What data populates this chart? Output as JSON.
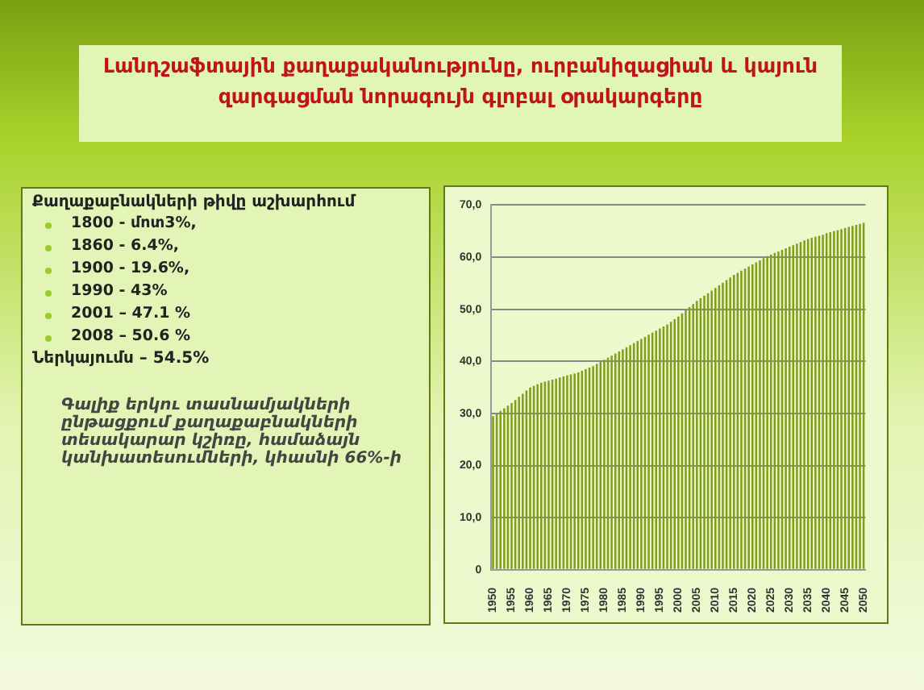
{
  "chart_data": {
    "type": "bar",
    "title": "Լանդշաֆտային քաղաքականությունը, ուրբանիզացիան և կայուն զարգացման նորագույն գլոբալ օրակարգերը",
    "annotations": [
      "Քաղաքաբնակների թիվը աշխարհում",
      "1800 - մոտ3%,",
      "1860 - 6.4%,",
      "1900 - 19.6%,",
      "1990 - 43%",
      "2001 – 47.1 %",
      "2008 – 50.6 %",
      "Ներկայումս – 54.5%",
      "Գալիք երկու տասնամյակների ընթացքում քաղաքաբնակների տեսակարար կշիռը, համաձայն կանխատեսումների, կհասնի 66%-ի"
    ],
    "categories": [
      "1950",
      null,
      null,
      null,
      null,
      "1955",
      null,
      null,
      null,
      null,
      "1960",
      null,
      null,
      null,
      null,
      "1965",
      null,
      null,
      null,
      null,
      "1970",
      null,
      null,
      null,
      null,
      "1975",
      null,
      null,
      null,
      null,
      "1980",
      null,
      null,
      null,
      null,
      "1985",
      null,
      null,
      null,
      null,
      "1990",
      null,
      null,
      null,
      null,
      "1995",
      null,
      null,
      null,
      null,
      "2000",
      null,
      null,
      null,
      null,
      "2005",
      null,
      null,
      null,
      null,
      "2010",
      null,
      null,
      null,
      null,
      "2015",
      null,
      null,
      null,
      null,
      "2020",
      null,
      null,
      null,
      null,
      "2025",
      null,
      null,
      null,
      null,
      "2030",
      null,
      null,
      null,
      null,
      "2035",
      null,
      null,
      null,
      null,
      "2040",
      null,
      null,
      null,
      null,
      "2045",
      null,
      null,
      null,
      null,
      "2050"
    ],
    "values": [
      29.5,
      30.0,
      30.5,
      31.0,
      31.5,
      32.0,
      32.6,
      33.2,
      33.8,
      34.4,
      35.0,
      35.3,
      35.6,
      35.9,
      36.1,
      36.3,
      36.5,
      36.7,
      36.9,
      37.1,
      37.3,
      37.5,
      37.7,
      37.9,
      38.2,
      38.5,
      38.8,
      39.1,
      39.5,
      39.9,
      40.3,
      40.7,
      41.1,
      41.5,
      41.9,
      42.3,
      42.7,
      43.1,
      43.5,
      43.9,
      44.3,
      44.7,
      45.1,
      45.5,
      45.9,
      46.3,
      46.7,
      47.1,
      47.6,
      48.1,
      48.6,
      49.2,
      49.8,
      50.4,
      51.0,
      51.6,
      52.1,
      52.6,
      53.1,
      53.6,
      54.1,
      54.6,
      55.1,
      55.6,
      56.1,
      56.6,
      57.0,
      57.4,
      57.8,
      58.2,
      58.6,
      59.0,
      59.4,
      59.8,
      60.2,
      60.5,
      60.8,
      61.1,
      61.4,
      61.7,
      62.0,
      62.3,
      62.6,
      62.9,
      63.2,
      63.5,
      63.7,
      63.9,
      64.1,
      64.3,
      64.6,
      64.8,
      65.0,
      65.2,
      65.4,
      65.6,
      65.8,
      66.0,
      66.2,
      66.4,
      66.6
    ],
    "color": "#7f9e1c",
    "ylim": [
      0,
      70
    ],
    "yticks": [
      0,
      {
        "value": 10,
        "label": "10,0"
      },
      {
        "value": 20,
        "label": "20,0"
      },
      {
        "value": 30,
        "label": "30,0"
      },
      {
        "value": 40,
        "label": "40,0"
      },
      {
        "value": 50,
        "label": "50,0"
      },
      {
        "value": 60,
        "label": "60,0"
      },
      {
        "value": 70,
        "label": "70,0"
      }
    ],
    "grid": "y",
    "legend": false
  }
}
